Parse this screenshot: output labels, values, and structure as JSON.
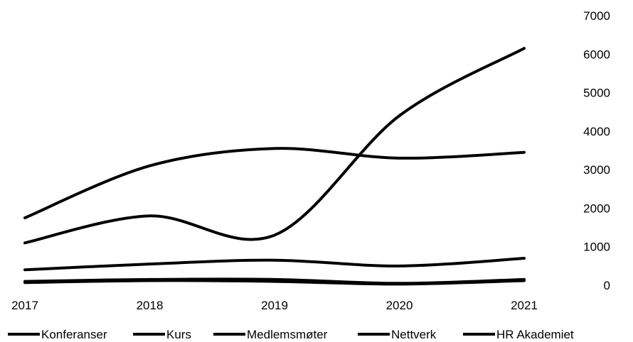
{
  "chart_data": {
    "type": "line",
    "title": "",
    "xlabel": "",
    "ylabel": "",
    "x": [
      "2017",
      "2018",
      "2019",
      "2020",
      "2021"
    ],
    "ylim": [
      0,
      7000
    ],
    "y_ticks": [
      "0",
      "1000",
      "2000",
      "3000",
      "4000",
      "5000",
      "6000",
      "7000"
    ],
    "y_axis_side": "right",
    "grid": false,
    "legend_position": "bottom",
    "smooth": true,
    "line_color": "#000000",
    "series": [
      {
        "name": "Konferanser",
        "values": [
          1100,
          1800,
          1300,
          4400,
          6150
        ]
      },
      {
        "name": "Kurs",
        "values": [
          1750,
          3100,
          3550,
          3300,
          3450
        ]
      },
      {
        "name": "Medlemsmøter",
        "values": [
          400,
          550,
          650,
          500,
          700
        ]
      },
      {
        "name": "Nettverk",
        "values": [
          100,
          150,
          150,
          50,
          150
        ]
      },
      {
        "name": "HR Akademiet",
        "values": [
          70,
          120,
          100,
          30,
          120
        ]
      }
    ]
  }
}
